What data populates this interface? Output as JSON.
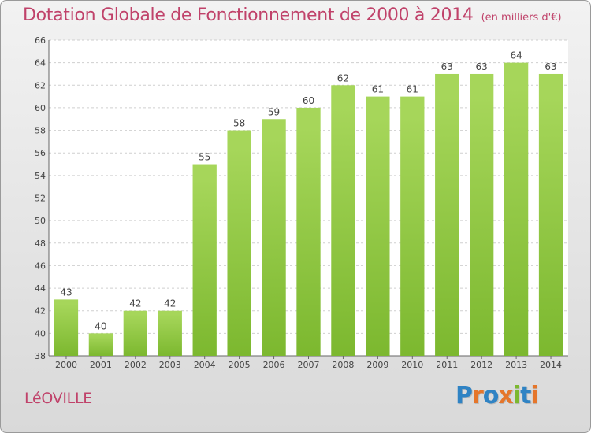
{
  "chart_data": {
    "type": "bar",
    "title": "Dotation Globale de Fonctionnement de 2000 à 2014",
    "unit_note": "(en milliers d'€)",
    "xlabel": "",
    "ylabel": "",
    "categories": [
      "2000",
      "2001",
      "2002",
      "2003",
      "2004",
      "2005",
      "2006",
      "2007",
      "2008",
      "2009",
      "2010",
      "2011",
      "2012",
      "2013",
      "2014"
    ],
    "values": [
      43,
      40,
      42,
      42,
      55,
      58,
      59,
      60,
      62,
      61,
      61,
      63,
      63,
      64,
      63
    ],
    "ylim": [
      38,
      66
    ],
    "yticks": [
      38,
      40,
      42,
      44,
      46,
      48,
      50,
      52,
      54,
      56,
      58,
      60,
      62,
      64,
      66
    ],
    "grid": true,
    "legend": "none",
    "bar_color": "#7cb82f",
    "bar_highlight": "#a6d65a"
  },
  "footer": {
    "commune": "LéOVILLE",
    "logo_letters": [
      {
        "ch": "P",
        "color": "#2f83c4"
      },
      {
        "ch": "r",
        "color": "#e5762b"
      },
      {
        "ch": "o",
        "color": "#2f83c4"
      },
      {
        "ch": "x",
        "color": "#e5762b"
      },
      {
        "ch": "i",
        "color": "#7cb82f"
      },
      {
        "ch": "t",
        "color": "#2f83c4"
      },
      {
        "ch": "i",
        "color": "#e5762b"
      }
    ]
  }
}
